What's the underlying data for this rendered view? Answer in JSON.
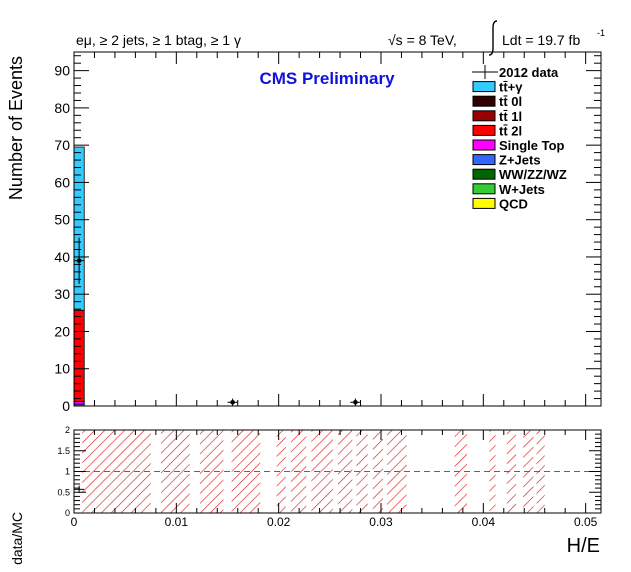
{
  "header": {
    "selection": "eμ, ≥ 2 jets, ≥ 1 btag, ≥ 1 γ",
    "energy": "√s = 8 TeV,",
    "lumi": "Ldt = 19.7 fb",
    "lumi_exp": "-1"
  },
  "chart_data": [
    {
      "type": "bar",
      "stacked": true,
      "annotation": "CMS Preliminary",
      "ylabel": "Number of Events",
      "xlim": [
        0,
        0.0515
      ],
      "ylim": [
        0,
        95
      ],
      "yticks": [
        "0",
        "10",
        "20",
        "30",
        "40",
        "50",
        "60",
        "70",
        "80",
        "90"
      ],
      "bin_width": 0.001,
      "legend_placement": "top-right",
      "legend": [
        {
          "label": "2012 data",
          "style": "marker"
        },
        {
          "label": "tt̄+γ",
          "color": "#33ccff"
        },
        {
          "label": "tt̄ 0l",
          "color": "#330000"
        },
        {
          "label": "tt̄ 1l",
          "color": "#990000"
        },
        {
          "label": "tt̄ 2l",
          "color": "#ff0000"
        },
        {
          "label": "Single Top",
          "color": "#ff00ff"
        },
        {
          "label": "Z+Jets",
          "color": "#3366ff"
        },
        {
          "label": "WW/ZZ/WZ",
          "color": "#006600"
        },
        {
          "label": "W+Jets",
          "color": "#33cc33"
        },
        {
          "label": "QCD",
          "color": "#ffff00"
        }
      ],
      "stack_bins": [
        {
          "x0": 0.0,
          "components": [
            {
              "color": "#3366ff",
              "value": 0.5
            },
            {
              "color": "#ff00ff",
              "value": 0.7
            },
            {
              "color": "#ff0000",
              "value": 24.5
            },
            {
              "color": "#33ccff",
              "value": 43.8
            }
          ]
        }
      ],
      "data_points": [
        {
          "x": 0.0005,
          "y": 39,
          "yerr": 6.2
        },
        {
          "x": 0.0035,
          "y": 0,
          "yerr": 0
        },
        {
          "x": 0.0115,
          "y": 0,
          "yerr": 0
        },
        {
          "x": 0.0135,
          "y": 0,
          "yerr": 0
        },
        {
          "x": 0.0155,
          "y": 1,
          "yerr": 1
        },
        {
          "x": 0.0175,
          "y": 0,
          "yerr": 0
        },
        {
          "x": 0.0255,
          "y": 0,
          "yerr": 0
        },
        {
          "x": 0.0275,
          "y": 1,
          "yerr": 1
        },
        {
          "x": 0.0315,
          "y": 0,
          "yerr": 0
        }
      ]
    },
    {
      "type": "bar",
      "ylabel": "data/MC",
      "xlabel": "H/E",
      "xlim": [
        0,
        0.0515
      ],
      "ylim": [
        0,
        2
      ],
      "yticks": [
        "0",
        "0.5",
        "1",
        "1.5",
        "2"
      ],
      "xticks": [
        "0",
        "0.01",
        "0.02",
        "0.03",
        "0.04",
        "0.05"
      ],
      "xtick_values": [
        0,
        0.01,
        0.02,
        0.03,
        0.04,
        0.05
      ],
      "reference_line": 1,
      "uncertainty_bins": [
        [
          0.0008,
          0.0075
        ],
        [
          0.0085,
          0.0113
        ],
        [
          0.0123,
          0.0146
        ],
        [
          0.0154,
          0.0182
        ],
        [
          0.0198,
          0.0207
        ],
        [
          0.0212,
          0.0227
        ],
        [
          0.0232,
          0.0253
        ],
        [
          0.0258,
          0.0272
        ],
        [
          0.0276,
          0.0287
        ],
        [
          0.0292,
          0.0302
        ],
        [
          0.0306,
          0.0325
        ],
        [
          0.0372,
          0.0384
        ],
        [
          0.0406,
          0.0412
        ],
        [
          0.0423,
          0.0432
        ],
        [
          0.0439,
          0.0449
        ],
        [
          0.0452,
          0.046
        ]
      ],
      "ratio_points": [
        {
          "x": 0.0005,
          "y": 0.57,
          "yerr": 0.09
        }
      ]
    }
  ]
}
